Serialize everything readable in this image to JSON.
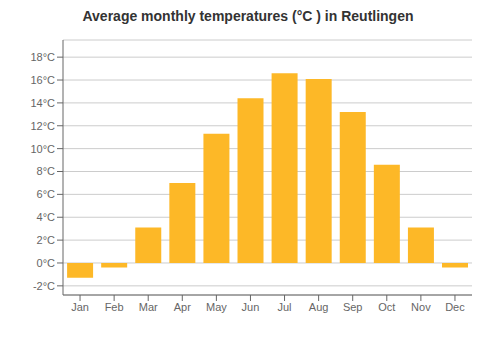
{
  "chart_data": {
    "type": "bar",
    "title": "Average monthly temperatures (°C ) in Reutlingen",
    "categories": [
      "Jan",
      "Feb",
      "Mar",
      "Apr",
      "May",
      "Jun",
      "Jul",
      "Aug",
      "Sep",
      "Oct",
      "Nov",
      "Dec"
    ],
    "values": [
      -1.3,
      -0.4,
      3.1,
      7.0,
      11.3,
      14.4,
      16.6,
      16.1,
      13.2,
      8.6,
      3.1,
      -0.4
    ],
    "color": "#FDB827",
    "ylim": [
      -2.8,
      19.5
    ],
    "yticks": [
      {
        "value": -2,
        "label": "-2°C"
      },
      {
        "value": 0,
        "label": "0°C"
      },
      {
        "value": 2,
        "label": "2°C"
      },
      {
        "value": 4,
        "label": "4°C"
      },
      {
        "value": 6,
        "label": "6°C"
      },
      {
        "value": 8,
        "label": "8°C"
      },
      {
        "value": 10,
        "label": "10°C"
      },
      {
        "value": 12,
        "label": "12°C"
      },
      {
        "value": 14,
        "label": "14°C"
      },
      {
        "value": 16,
        "label": "16°C"
      },
      {
        "value": 18,
        "label": "18°C"
      }
    ],
    "grid": true
  }
}
